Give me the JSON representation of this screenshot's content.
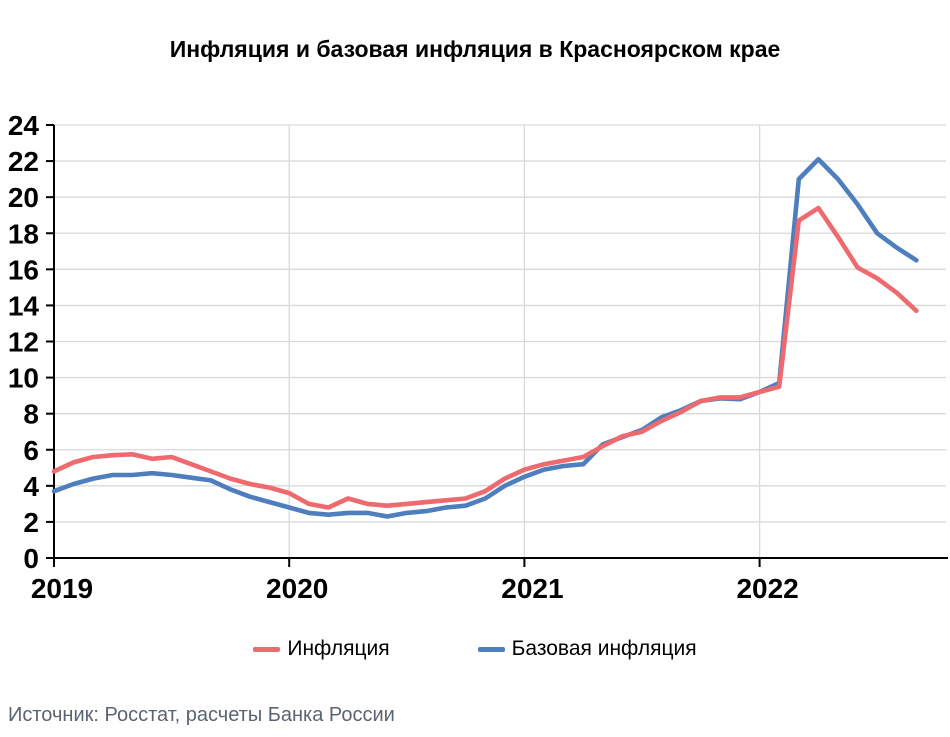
{
  "title": "Инфляция и базовая инфляция в Красноярском крае",
  "source": "Источник: Росстат, расчеты Банка России",
  "legend": {
    "inflation_label": "Инфляция",
    "core_inflation_label": "Базовая инфляция"
  },
  "colors": {
    "inflation": "#ee6a6e",
    "core_inflation": "#4e7ebd",
    "gridline": "#d9d9d9",
    "axis": "#000000",
    "source_text": "#5b6472"
  },
  "chart_data": {
    "type": "line",
    "title": "Инфляция и базовая инфляция в Красноярском крае",
    "xlabel": "",
    "ylabel": "",
    "ylim": [
      0,
      24
    ],
    "ytick_step": 2,
    "yticks": [
      0,
      2,
      4,
      6,
      8,
      10,
      12,
      14,
      16,
      18,
      20,
      22,
      24
    ],
    "xticks": [
      {
        "label": "2019",
        "month_index": 0
      },
      {
        "label": "2020",
        "month_index": 12
      },
      {
        "label": "2021",
        "month_index": 24
      },
      {
        "label": "2022",
        "month_index": 36
      }
    ],
    "grid": "horizontal major gridlines; faint vertical gridlines at year ticks",
    "legend_position": "bottom",
    "x": [
      "2019-01",
      "2019-02",
      "2019-03",
      "2019-04",
      "2019-05",
      "2019-06",
      "2019-07",
      "2019-08",
      "2019-09",
      "2019-10",
      "2019-11",
      "2019-12",
      "2020-01",
      "2020-02",
      "2020-03",
      "2020-04",
      "2020-05",
      "2020-06",
      "2020-07",
      "2020-08",
      "2020-09",
      "2020-10",
      "2020-11",
      "2020-12",
      "2021-01",
      "2021-02",
      "2021-03",
      "2021-04",
      "2021-05",
      "2021-06",
      "2021-07",
      "2021-08",
      "2021-09",
      "2021-10",
      "2021-11",
      "2021-12",
      "2022-01",
      "2022-02",
      "2022-03",
      "2022-04",
      "2022-05",
      "2022-06",
      "2022-07",
      "2022-08",
      "2022-09"
    ],
    "series": [
      {
        "name": "Инфляция",
        "color": "#ee6a6e",
        "values": [
          4.8,
          5.3,
          5.6,
          5.7,
          5.75,
          5.5,
          5.6,
          5.2,
          4.8,
          4.4,
          4.1,
          3.9,
          3.6,
          3.0,
          2.8,
          3.3,
          3.0,
          2.9,
          3.0,
          3.1,
          3.2,
          3.3,
          3.7,
          4.4,
          4.9,
          5.2,
          5.4,
          5.6,
          6.2,
          6.75,
          7.0,
          7.6,
          8.1,
          8.7,
          8.9,
          8.9,
          9.2,
          9.5,
          18.7,
          19.4,
          17.8,
          16.1,
          15.5,
          14.7,
          13.7
        ]
      },
      {
        "name": "Базовая инфляция",
        "color": "#4e7ebd",
        "values": [
          3.7,
          4.1,
          4.4,
          4.6,
          4.6,
          4.7,
          4.6,
          4.45,
          4.3,
          3.8,
          3.4,
          3.1,
          2.8,
          2.5,
          2.4,
          2.5,
          2.5,
          2.3,
          2.5,
          2.6,
          2.8,
          2.9,
          3.3,
          4.0,
          4.5,
          4.9,
          5.1,
          5.2,
          6.3,
          6.7,
          7.1,
          7.8,
          8.2,
          8.7,
          8.85,
          8.8,
          9.2,
          9.7,
          21.0,
          22.1,
          21.0,
          19.6,
          18.0,
          17.2,
          16.5
        ]
      }
    ]
  }
}
